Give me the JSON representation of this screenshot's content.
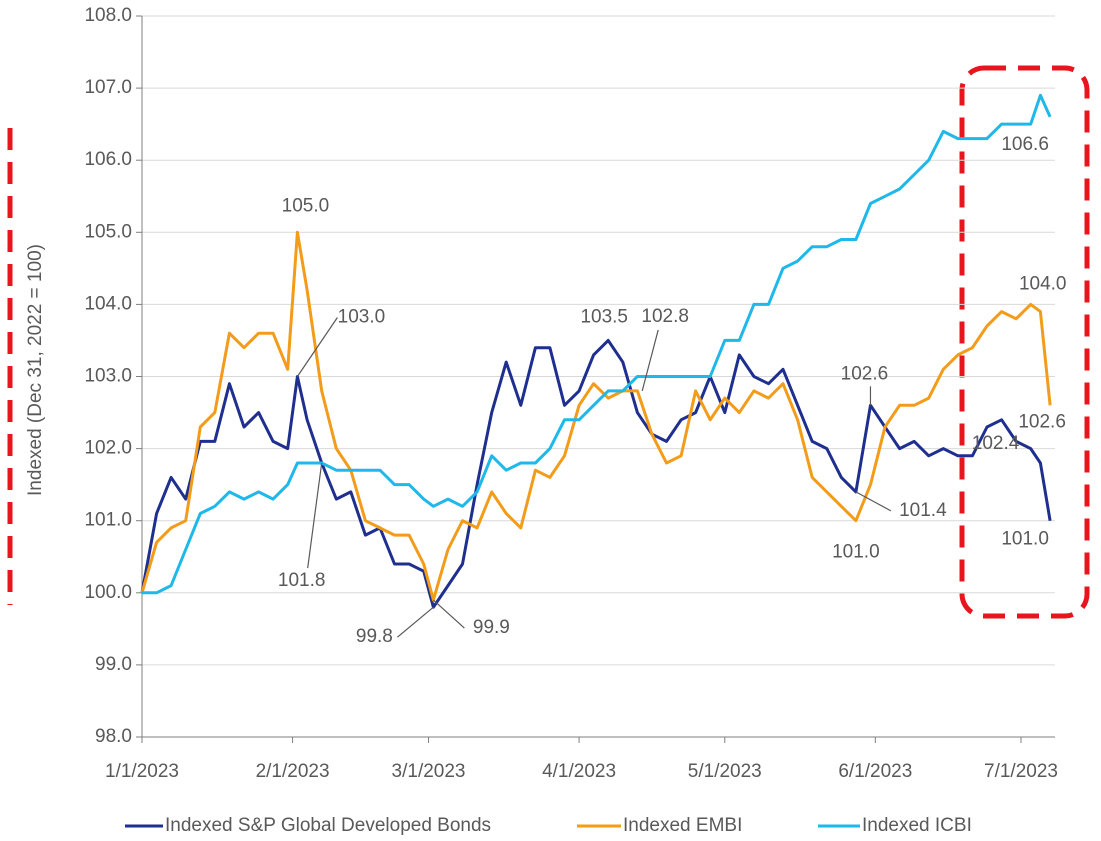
{
  "chart_data": {
    "type": "line",
    "y_label": "Indexed (Dec 31, 2022 = 100)",
    "x": [
      "1/1/2023",
      "1/4/2023",
      "1/7/2023",
      "1/10/2023",
      "1/13/2023",
      "1/16/2023",
      "1/19/2023",
      "1/22/2023",
      "1/25/2023",
      "1/28/2023",
      "1/31/2023",
      "2/2/2023",
      "2/4/2023",
      "2/7/2023",
      "2/10/2023",
      "2/13/2023",
      "2/16/2023",
      "2/19/2023",
      "2/22/2023",
      "2/25/2023",
      "2/28/2023",
      "3/2/2023",
      "3/5/2023",
      "3/8/2023",
      "3/11/2023",
      "3/14/2023",
      "3/17/2023",
      "3/20/2023",
      "3/23/2023",
      "3/26/2023",
      "3/29/2023",
      "4/1/2023",
      "4/4/2023",
      "4/7/2023",
      "4/10/2023",
      "4/13/2023",
      "4/16/2023",
      "4/19/2023",
      "4/22/2023",
      "4/25/2023",
      "4/28/2023",
      "5/1/2023",
      "5/4/2023",
      "5/7/2023",
      "5/10/2023",
      "5/13/2023",
      "5/16/2023",
      "5/19/2023",
      "5/22/2023",
      "5/25/2023",
      "5/28/2023",
      "5/31/2023",
      "6/3/2023",
      "6/6/2023",
      "6/9/2023",
      "6/12/2023",
      "6/15/2023",
      "6/18/2023",
      "6/21/2023",
      "6/24/2023",
      "6/27/2023",
      "6/30/2023",
      "7/3/2023",
      "7/5/2023",
      "7/7/2023"
    ],
    "series": [
      {
        "name": "Indexed S&P Global Developed Bonds",
        "color": "#1f2f8f",
        "values": [
          100.0,
          101.1,
          101.6,
          101.3,
          102.1,
          102.1,
          102.9,
          102.3,
          102.5,
          102.1,
          102.0,
          103.0,
          102.4,
          101.8,
          101.3,
          101.4,
          100.8,
          100.9,
          100.4,
          100.4,
          100.3,
          99.8,
          100.1,
          100.4,
          101.5,
          102.5,
          103.2,
          102.6,
          103.4,
          103.4,
          102.6,
          102.8,
          103.3,
          103.5,
          103.2,
          102.5,
          102.2,
          102.1,
          102.4,
          102.5,
          103.0,
          102.5,
          103.3,
          103.0,
          102.9,
          103.1,
          102.6,
          102.1,
          102.0,
          101.6,
          101.4,
          102.6,
          102.3,
          102.0,
          102.1,
          101.9,
          102.0,
          101.9,
          101.9,
          102.3,
          102.4,
          102.1,
          102.0,
          101.8,
          101.0
        ]
      },
      {
        "name": "Indexed EMBI",
        "color": "#f39c1a",
        "values": [
          100.0,
          100.7,
          100.9,
          101.0,
          102.3,
          102.5,
          103.6,
          103.4,
          103.6,
          103.6,
          103.1,
          105.0,
          104.2,
          102.8,
          102.0,
          101.7,
          101.0,
          100.9,
          100.8,
          100.8,
          100.4,
          99.9,
          100.6,
          101.0,
          100.9,
          101.4,
          101.1,
          100.9,
          101.7,
          101.6,
          101.9,
          102.6,
          102.9,
          102.7,
          102.8,
          102.8,
          102.2,
          101.8,
          101.9,
          102.8,
          102.4,
          102.7,
          102.5,
          102.8,
          102.7,
          102.9,
          102.4,
          101.6,
          101.4,
          101.2,
          101.0,
          101.5,
          102.3,
          102.6,
          102.6,
          102.7,
          103.1,
          103.3,
          103.4,
          103.7,
          103.9,
          103.8,
          104.0,
          103.9,
          102.6
        ]
      },
      {
        "name": "Indexed ICBI",
        "color": "#1eb8ea",
        "values": [
          100.0,
          100.0,
          100.1,
          100.6,
          101.1,
          101.2,
          101.4,
          101.3,
          101.4,
          101.3,
          101.5,
          101.8,
          101.8,
          101.8,
          101.7,
          101.7,
          101.7,
          101.7,
          101.5,
          101.5,
          101.3,
          101.2,
          101.3,
          101.2,
          101.4,
          101.9,
          101.7,
          101.8,
          101.8,
          102.0,
          102.4,
          102.4,
          102.6,
          102.8,
          102.8,
          103.0,
          103.0,
          103.0,
          103.0,
          103.0,
          103.0,
          103.5,
          103.5,
          104.0,
          104.0,
          104.5,
          104.6,
          104.8,
          104.8,
          104.9,
          104.9,
          105.4,
          105.5,
          105.6,
          105.8,
          106.0,
          106.4,
          106.3,
          106.3,
          106.3,
          106.5,
          106.5,
          106.5,
          106.9,
          106.6
        ]
      }
    ],
    "xlim": [
      "1/1/2023",
      "7/8/2023"
    ],
    "xticks": [
      "1/1/2023",
      "2/1/2023",
      "3/1/2023",
      "4/1/2023",
      "5/1/2023",
      "6/1/2023",
      "7/1/2023"
    ],
    "ylim": [
      98,
      108
    ],
    "yticks": [
      {
        "value": 98,
        "label": "98.0"
      },
      {
        "value": 99,
        "label": "99.0"
      },
      {
        "value": 100,
        "label": "100.0"
      },
      {
        "value": 101,
        "label": "101.0"
      },
      {
        "value": 102,
        "label": "102.0"
      },
      {
        "value": 103,
        "label": "103.0"
      },
      {
        "value": 104,
        "label": "104.0"
      },
      {
        "value": 105,
        "label": "105.0"
      },
      {
        "value": 106,
        "label": "106.0"
      },
      {
        "value": 107,
        "label": "107.0"
      },
      {
        "value": 108,
        "label": "108.0"
      }
    ],
    "grid": true,
    "legend": "bottom",
    "annotations": [
      {
        "text": "105.0",
        "x": "2/2/2023",
        "y": 105.0
      },
      {
        "text": "103.0",
        "x": "2/2/2023",
        "y": 103.0
      },
      {
        "text": "101.8",
        "x": "2/7/2023",
        "y": 101.8
      },
      {
        "text": "99.8",
        "x": "3/2/2023",
        "y": 99.8
      },
      {
        "text": "99.9",
        "x": "3/2/2023",
        "y": 99.9
      },
      {
        "text": "103.5",
        "x": "4/7/2023",
        "y": 103.5
      },
      {
        "text": "102.8",
        "x": "4/14/2023",
        "y": 102.8
      },
      {
        "text": "101.4",
        "x": "5/28/2023",
        "y": 101.4
      },
      {
        "text": "101.0",
        "x": "5/28/2023",
        "y": 101.0
      },
      {
        "text": "102.6",
        "x": "5/31/2023",
        "y": 102.6
      },
      {
        "text": "102.4",
        "x": "6/27/2023",
        "y": 102.4
      },
      {
        "text": "104.0",
        "x": "7/3/2023",
        "y": 104.0
      },
      {
        "text": "102.6",
        "x": "7/7/2023",
        "y": 102.6
      },
      {
        "text": "106.6",
        "x": "7/7/2023",
        "y": 106.6
      },
      {
        "text": "101.0",
        "x": "7/7/2023",
        "y": 101.0
      }
    ]
  }
}
